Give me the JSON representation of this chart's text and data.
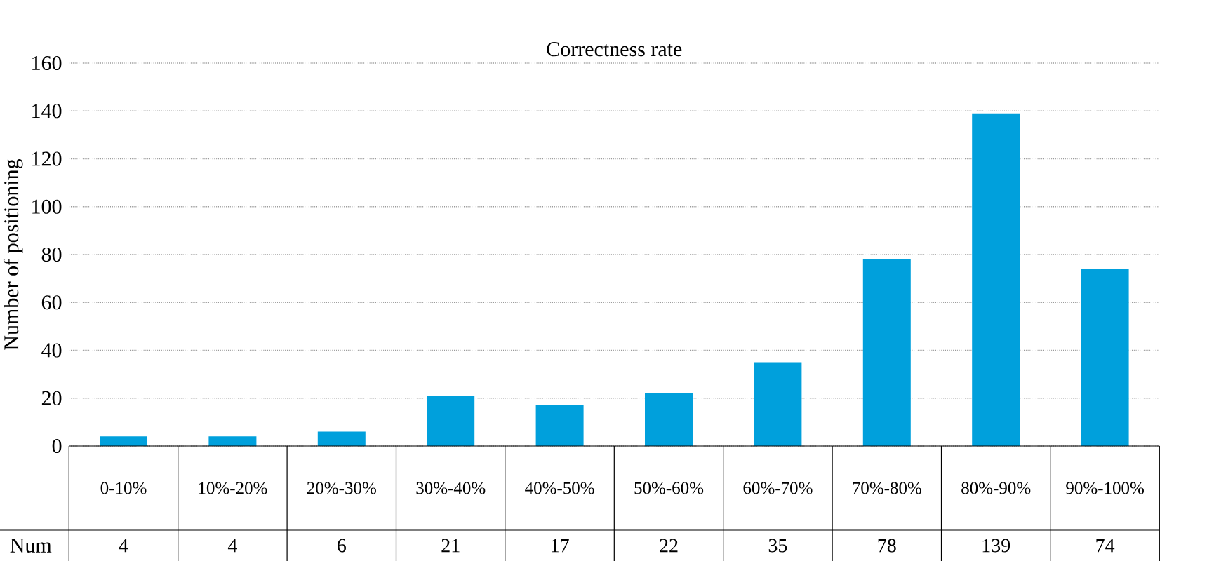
{
  "chart_data": {
    "type": "bar",
    "title": "Correctness rate",
    "ylabel": "Number of positioning",
    "categories": [
      "0-10%",
      "10%-20%",
      "20%-30%",
      "30%-40%",
      "40%-50%",
      "50%-60%",
      "60%-70%",
      "70%-80%",
      "80%-90%",
      "90%-100%"
    ],
    "series": [
      {
        "name": "Num",
        "color": "#00a0dc",
        "values": [
          4,
          4,
          6,
          21,
          17,
          22,
          35,
          78,
          139,
          74
        ]
      }
    ],
    "ylim": [
      0,
      160
    ],
    "yticks": [
      0,
      20,
      40,
      60,
      80,
      100,
      120,
      140,
      160
    ],
    "grid": "y",
    "data_labels": true
  }
}
